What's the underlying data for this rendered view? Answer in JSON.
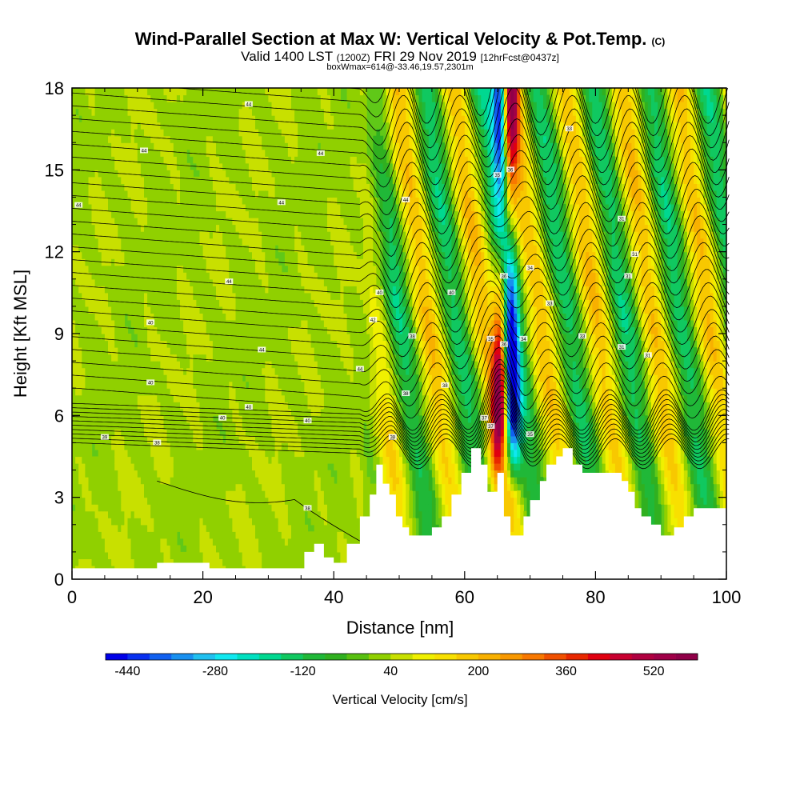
{
  "title": {
    "main": "Wind-Parallel Section at Max W: Vertical Velocity & Pot.Temp.",
    "copyright": "(C)",
    "valid_prefix": "Valid 1400 LST",
    "valid_utc": "(1200Z)",
    "valid_date": "FRI 29 Nov 2019",
    "forecast": "[12hrFcst@0437z]",
    "box_info": "boxWmax=614@-33.46,19.57,2301m"
  },
  "chart_data": {
    "type": "heatmap",
    "xlabel": "Distance [nm]",
    "ylabel": "Height [Kft MSL]",
    "xlim": [
      0,
      100
    ],
    "ylim": [
      0,
      18
    ],
    "x_ticks": [
      0,
      20,
      40,
      60,
      80,
      100
    ],
    "y_ticks": [
      0,
      3,
      6,
      9,
      12,
      15,
      18
    ],
    "colorbar": {
      "label": "Vertical Velocity [cm/s]",
      "min": -480,
      "max": 600,
      "step": 40,
      "tick_values": [
        -440,
        -280,
        -120,
        40,
        200,
        360,
        520
      ],
      "colors": [
        "#0000e8",
        "#0830f0",
        "#1060f0",
        "#1890f0",
        "#20c0f0",
        "#10e8f0",
        "#00e0c0",
        "#00d890",
        "#10c860",
        "#20b838",
        "#30b020",
        "#58c010",
        "#90d000",
        "#c8e000",
        "#f0f000",
        "#f8e000",
        "#f8c800",
        "#f8b000",
        "#f89800",
        "#f87800",
        "#f05000",
        "#e82800",
        "#e00010",
        "#c80030",
        "#b00040",
        "#a00048",
        "#900048"
      ]
    },
    "terrain_kft": [
      [
        0,
        0.4
      ],
      [
        13,
        0.4
      ],
      [
        13,
        0.6
      ],
      [
        21,
        0.6
      ],
      [
        21,
        0.4
      ],
      [
        35.5,
        0.4
      ],
      [
        35.5,
        1.0
      ],
      [
        37,
        1.0
      ],
      [
        37,
        1.3
      ],
      [
        38.5,
        1.3
      ],
      [
        38.5,
        0.8
      ],
      [
        40,
        0.8
      ],
      [
        40,
        0.6
      ],
      [
        42,
        0.6
      ],
      [
        42,
        1.3
      ],
      [
        44,
        1.3
      ],
      [
        44,
        2.3
      ],
      [
        45.5,
        2.3
      ],
      [
        45.5,
        3.1
      ],
      [
        46.5,
        3.1
      ],
      [
        46.5,
        4.2
      ],
      [
        47.5,
        4.2
      ],
      [
        47.5,
        3.5
      ],
      [
        48.5,
        3.5
      ],
      [
        48.5,
        3.1
      ],
      [
        49.5,
        3.1
      ],
      [
        49.5,
        2.3
      ],
      [
        50.5,
        2.3
      ],
      [
        50.5,
        1.9
      ],
      [
        51.5,
        1.9
      ],
      [
        51.5,
        1.6
      ],
      [
        55,
        1.6
      ],
      [
        55,
        1.9
      ],
      [
        56.5,
        1.9
      ],
      [
        56.5,
        2.3
      ],
      [
        58,
        2.3
      ],
      [
        58,
        3.1
      ],
      [
        59.5,
        3.1
      ],
      [
        59.5,
        3.9
      ],
      [
        61,
        3.9
      ],
      [
        61,
        4.8
      ],
      [
        62.5,
        4.8
      ],
      [
        62.5,
        4.2
      ],
      [
        63.5,
        4.2
      ],
      [
        63.5,
        3.2
      ],
      [
        65,
        3.2
      ],
      [
        65,
        3.9
      ],
      [
        66,
        3.9
      ],
      [
        66,
        2.3
      ],
      [
        67,
        2.3
      ],
      [
        67,
        1.6
      ],
      [
        69,
        1.6
      ],
      [
        69,
        2.3
      ],
      [
        70,
        2.3
      ],
      [
        70,
        2.9
      ],
      [
        71.5,
        2.9
      ],
      [
        71.5,
        3.6
      ],
      [
        72.5,
        3.6
      ],
      [
        72.5,
        4.2
      ],
      [
        74,
        4.2
      ],
      [
        74,
        4.5
      ],
      [
        75,
        4.5
      ],
      [
        75,
        4.8
      ],
      [
        76.5,
        4.8
      ],
      [
        76.5,
        4.2
      ],
      [
        78,
        4.2
      ],
      [
        78,
        3.9
      ],
      [
        80.5,
        3.9
      ],
      [
        80.5,
        3.9
      ],
      [
        84,
        3.9
      ],
      [
        84,
        3.6
      ],
      [
        85,
        3.6
      ],
      [
        85,
        3.2
      ],
      [
        86,
        3.2
      ],
      [
        86,
        2.6
      ],
      [
        87,
        2.6
      ],
      [
        87,
        2.3
      ],
      [
        88.5,
        2.3
      ],
      [
        88.5,
        2.0
      ],
      [
        90,
        2.0
      ],
      [
        90,
        1.6
      ],
      [
        92,
        1.6
      ],
      [
        92,
        1.9
      ],
      [
        93.5,
        1.9
      ],
      [
        93.5,
        2.3
      ],
      [
        95,
        2.3
      ],
      [
        95,
        2.6
      ],
      [
        100.5,
        2.6
      ]
    ],
    "wave_updraft_cores_nm": [
      51,
      57,
      75,
      84,
      94
    ],
    "wave_downdraft_cores_nm": [
      54,
      60,
      71,
      80,
      89,
      97
    ],
    "max_updraft_core": {
      "x_nm_base": 64.5,
      "x_nm_top": 67,
      "value_cms": 600
    },
    "max_downdraft_core": {
      "x_nm_base": 68,
      "x_nm_top": 65.5,
      "value_cms": -440
    },
    "isentrope_labels": [
      "44",
      "44",
      "44",
      "44",
      "44",
      "44",
      "44",
      "40",
      "40",
      "42",
      "44",
      "44",
      "40",
      "40",
      "40",
      "40",
      "39",
      "38",
      "38",
      "38",
      "38",
      "38",
      "38",
      "40",
      "37",
      "37",
      "35",
      "35",
      "36",
      "36",
      "36",
      "34",
      "34",
      "35",
      "33",
      "33",
      "33",
      "31",
      "31",
      "31",
      "31",
      "31",
      "31",
      "31",
      "32",
      "30",
      "30",
      "30",
      "29",
      "29",
      "30",
      "30",
      "30",
      "30",
      "31"
    ]
  }
}
